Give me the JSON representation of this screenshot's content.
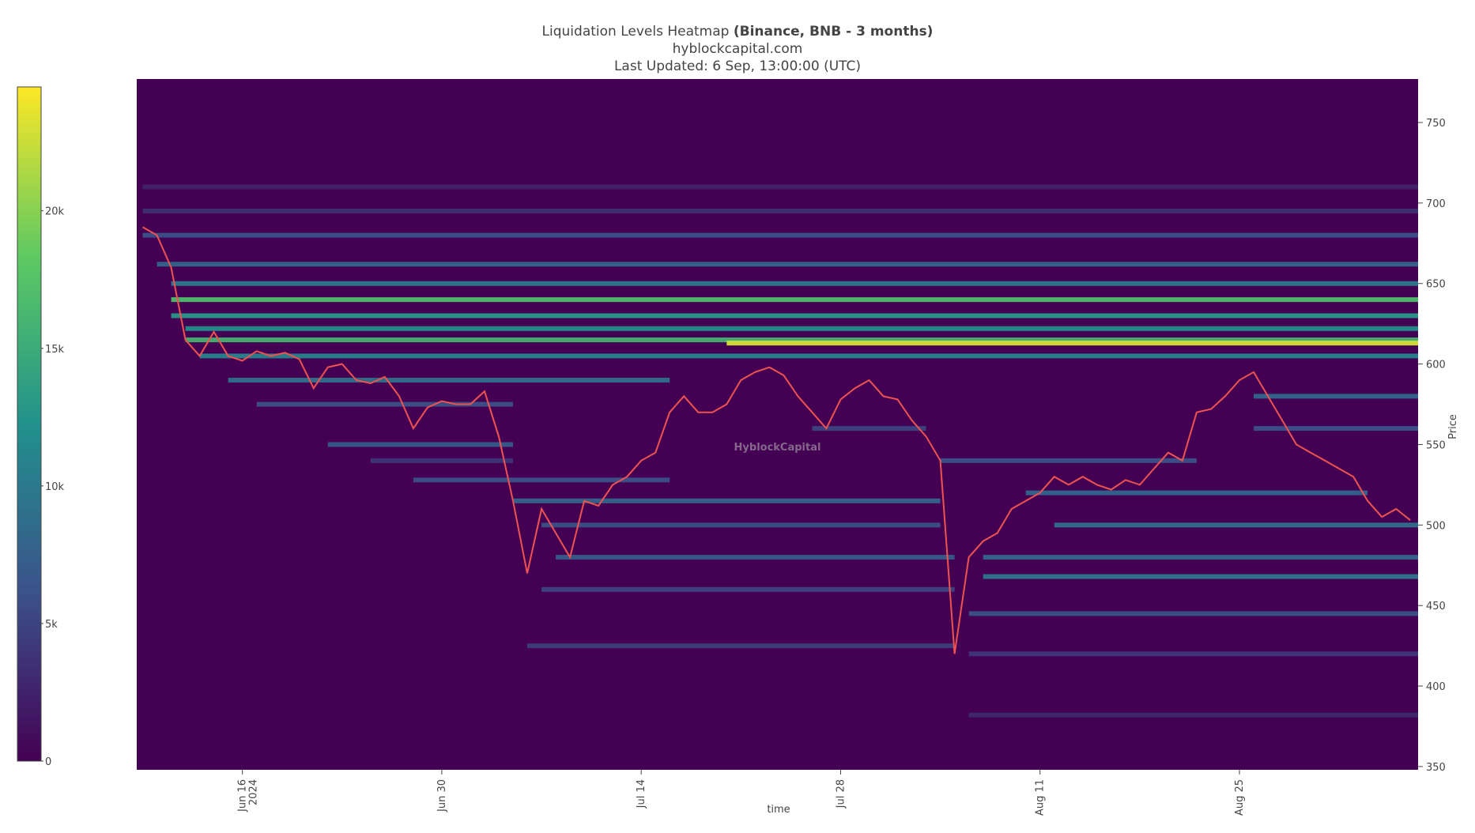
{
  "chart_data": {
    "type": "heatmap",
    "title": "Liquidation Levels Heatmap",
    "title_emphasis": "(Binance, BNB - 3 months)",
    "subtitle": "hyblockcapital.com",
    "updated": "Last Updated: 6 Sep, 13:00:00 (UTC)",
    "watermark": "HyblockCapital",
    "x_label": "time",
    "y_label": "Price",
    "xlim": [
      "2024-06-08T14:00",
      "2024-09-06T13:00"
    ],
    "xticks": [
      {
        "value": "2024-06-16",
        "label": "Jun 16",
        "sublabel": "2024"
      },
      {
        "value": "2024-06-30",
        "label": "Jun 30"
      },
      {
        "value": "2024-07-14",
        "label": "Jul 14"
      },
      {
        "value": "2024-07-28",
        "label": "Jul 28"
      },
      {
        "value": "2024-08-11",
        "label": "Aug 11"
      },
      {
        "value": "2024-08-25",
        "label": "Aug 25"
      }
    ],
    "ylim": [
      348,
      777
    ],
    "yticks": [
      350,
      400,
      450,
      500,
      550,
      600,
      650,
      700,
      750
    ],
    "colorbar": {
      "lim": [
        0,
        24500
      ],
      "ticks": [
        0,
        {
          "value": 5000,
          "label": "5k"
        },
        {
          "value": 10000,
          "label": "10k"
        },
        {
          "value": 15000,
          "label": "15k"
        },
        {
          "value": 20000,
          "label": "20k"
        }
      ]
    },
    "background_color": "#440154",
    "levels": [
      {
        "price": 710,
        "start": "2024-06-09",
        "end": "2024-09-06T13:00",
        "value": 2500
      },
      {
        "price": 695,
        "start": "2024-06-09",
        "end": "2024-09-06T13:00",
        "value": 3500
      },
      {
        "price": 680,
        "start": "2024-06-09",
        "end": "2024-09-06T13:00",
        "value": 6000
      },
      {
        "price": 662,
        "start": "2024-06-10",
        "end": "2024-09-06T13:00",
        "value": 8000
      },
      {
        "price": 650,
        "start": "2024-06-11",
        "end": "2024-09-06T13:00",
        "value": 10000
      },
      {
        "price": 640,
        "start": "2024-06-11",
        "end": "2024-09-06T13:00",
        "value": 17000
      },
      {
        "price": 630,
        "start": "2024-06-11",
        "end": "2024-09-06T13:00",
        "value": 13000
      },
      {
        "price": 622,
        "start": "2024-06-12",
        "end": "2024-09-06T13:00",
        "value": 12000
      },
      {
        "price": 615,
        "start": "2024-06-12",
        "end": "2024-09-06T13:00",
        "value": 16000
      },
      {
        "price": 613,
        "start": "2024-07-20",
        "end": "2024-09-06T13:00",
        "value": 23000
      },
      {
        "price": 605,
        "start": "2024-06-13",
        "end": "2024-09-06T13:00",
        "value": 11000
      },
      {
        "price": 590,
        "start": "2024-06-15",
        "end": "2024-07-16",
        "value": 9000
      },
      {
        "price": 575,
        "start": "2024-06-17",
        "end": "2024-07-05",
        "value": 6000
      },
      {
        "price": 550,
        "start": "2024-06-22",
        "end": "2024-07-05",
        "value": 7000
      },
      {
        "price": 540,
        "start": "2024-06-25",
        "end": "2024-07-05",
        "value": 4000
      },
      {
        "price": 528,
        "start": "2024-06-28",
        "end": "2024-07-16",
        "value": 6000
      },
      {
        "price": 515,
        "start": "2024-07-05",
        "end": "2024-08-04",
        "value": 8000
      },
      {
        "price": 500,
        "start": "2024-07-07",
        "end": "2024-08-04",
        "value": 6000
      },
      {
        "price": 480,
        "start": "2024-07-08",
        "end": "2024-08-05",
        "value": 7000
      },
      {
        "price": 460,
        "start": "2024-07-07",
        "end": "2024-08-05",
        "value": 5000
      },
      {
        "price": 425,
        "start": "2024-07-06",
        "end": "2024-08-05",
        "value": 4500
      },
      {
        "price": 560,
        "start": "2024-07-26",
        "end": "2024-08-03",
        "value": 5000
      },
      {
        "price": 540,
        "start": "2024-08-04",
        "end": "2024-08-22",
        "value": 6000
      },
      {
        "price": 520,
        "start": "2024-08-10",
        "end": "2024-09-03",
        "value": 8000
      },
      {
        "price": 500,
        "start": "2024-08-12",
        "end": "2024-09-06T13:00",
        "value": 9000
      },
      {
        "price": 480,
        "start": "2024-08-07",
        "end": "2024-09-06T13:00",
        "value": 8000
      },
      {
        "price": 468,
        "start": "2024-08-07",
        "end": "2024-09-06T13:00",
        "value": 9500
      },
      {
        "price": 445,
        "start": "2024-08-06",
        "end": "2024-09-06T13:00",
        "value": 6000
      },
      {
        "price": 420,
        "start": "2024-08-06",
        "end": "2024-09-06T13:00",
        "value": 4000
      },
      {
        "price": 382,
        "start": "2024-08-06",
        "end": "2024-09-06T13:00",
        "value": 3000
      },
      {
        "price": 580,
        "start": "2024-08-26",
        "end": "2024-09-06T13:00",
        "value": 8000
      },
      {
        "price": 560,
        "start": "2024-08-26",
        "end": "2024-09-06T13:00",
        "value": 6000
      }
    ],
    "price_series": {
      "color": "#ef5350",
      "x": [
        "2024-06-09",
        "2024-06-10",
        "2024-06-11",
        "2024-06-12",
        "2024-06-13",
        "2024-06-14",
        "2024-06-15",
        "2024-06-16",
        "2024-06-17",
        "2024-06-18",
        "2024-06-19",
        "2024-06-20",
        "2024-06-21",
        "2024-06-22",
        "2024-06-23",
        "2024-06-24",
        "2024-06-25",
        "2024-06-26",
        "2024-06-27",
        "2024-06-28",
        "2024-06-29",
        "2024-06-30",
        "2024-07-01",
        "2024-07-02",
        "2024-07-03",
        "2024-07-04",
        "2024-07-05",
        "2024-07-06",
        "2024-07-07",
        "2024-07-08",
        "2024-07-09",
        "2024-07-10",
        "2024-07-11",
        "2024-07-12",
        "2024-07-13",
        "2024-07-14",
        "2024-07-15",
        "2024-07-16",
        "2024-07-17",
        "2024-07-18",
        "2024-07-19",
        "2024-07-20",
        "2024-07-21",
        "2024-07-22",
        "2024-07-23",
        "2024-07-24",
        "2024-07-25",
        "2024-07-26",
        "2024-07-27",
        "2024-07-28",
        "2024-07-29",
        "2024-07-30",
        "2024-07-31",
        "2024-08-01",
        "2024-08-02",
        "2024-08-03",
        "2024-08-04",
        "2024-08-05",
        "2024-08-06",
        "2024-08-07",
        "2024-08-08",
        "2024-08-09",
        "2024-08-10",
        "2024-08-11",
        "2024-08-12",
        "2024-08-13",
        "2024-08-14",
        "2024-08-15",
        "2024-08-16",
        "2024-08-17",
        "2024-08-18",
        "2024-08-19",
        "2024-08-20",
        "2024-08-21",
        "2024-08-22",
        "2024-08-23",
        "2024-08-24",
        "2024-08-25",
        "2024-08-26",
        "2024-08-27",
        "2024-08-28",
        "2024-08-29",
        "2024-08-30",
        "2024-08-31",
        "2024-09-01",
        "2024-09-02",
        "2024-09-03",
        "2024-09-04",
        "2024-09-05",
        "2024-09-06"
      ],
      "values": [
        685,
        680,
        660,
        615,
        605,
        620,
        605,
        602,
        608,
        605,
        607,
        603,
        585,
        598,
        600,
        590,
        588,
        592,
        580,
        560,
        573,
        577,
        575,
        575,
        583,
        555,
        515,
        470,
        510,
        495,
        480,
        515,
        512,
        525,
        530,
        540,
        545,
        570,
        580,
        570,
        570,
        575,
        590,
        595,
        598,
        593,
        580,
        570,
        560,
        578,
        585,
        590,
        580,
        578,
        565,
        555,
        540,
        420,
        480,
        490,
        495,
        510,
        515,
        520,
        530,
        525,
        530,
        525,
        522,
        528,
        525,
        535,
        545,
        540,
        570,
        572,
        580,
        590,
        595,
        580,
        565,
        550,
        545,
        540,
        535,
        530,
        515,
        505,
        510,
        503
      ]
    }
  }
}
